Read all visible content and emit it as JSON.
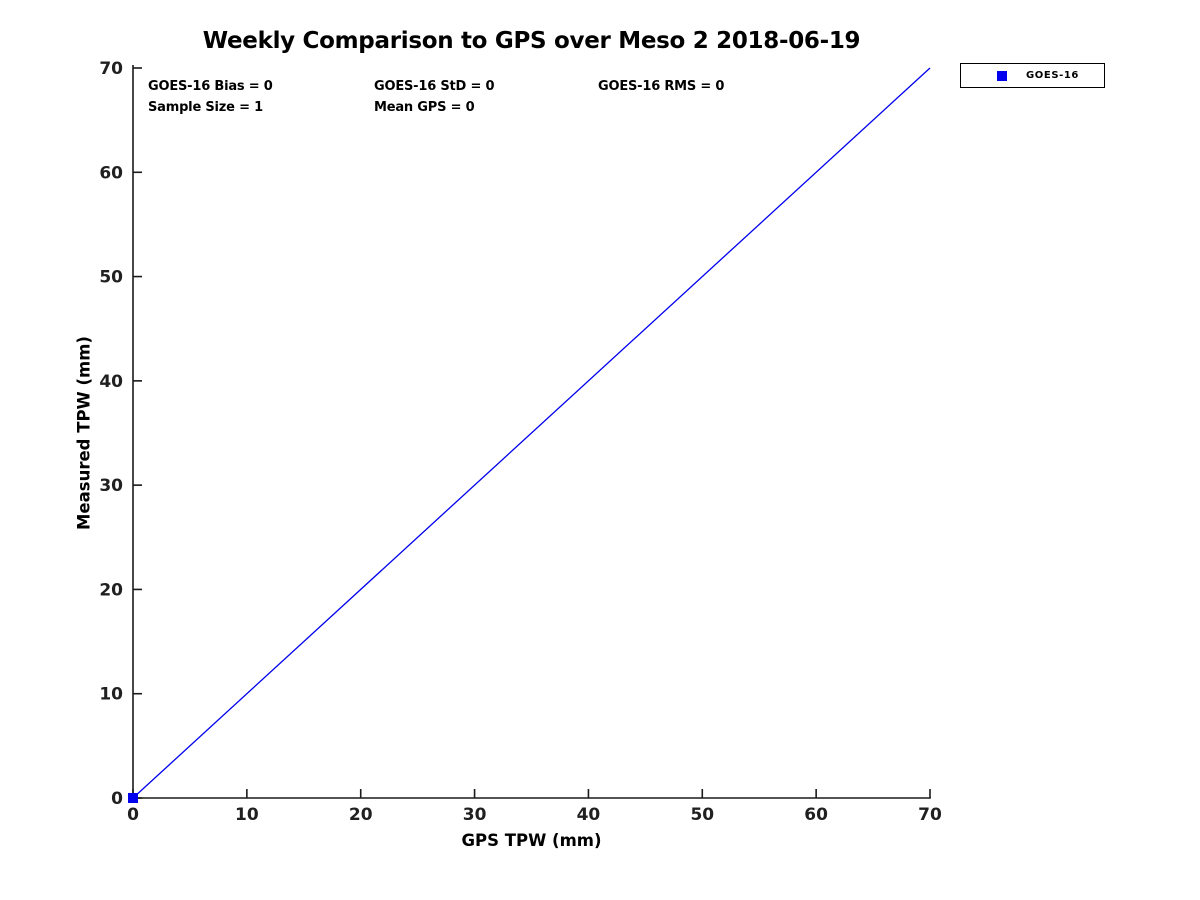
{
  "chart_data": {
    "type": "scatter",
    "title": "Weekly Comparison to GPS over Meso 2 2018-06-19",
    "xlabel": "GPS TPW (mm)",
    "ylabel": "Measured TPW (mm)",
    "xlim": [
      0,
      70
    ],
    "ylim": [
      0,
      70
    ],
    "xticks": [
      0,
      10,
      20,
      30,
      40,
      50,
      60,
      70
    ],
    "yticks": [
      0,
      10,
      20,
      30,
      40,
      50,
      60,
      70
    ],
    "grid": false,
    "axis_color": "#1a1a1a",
    "tick_label_color": "#202020",
    "accent_blue": "#0000ee",
    "legend": {
      "position": "outside-top-right",
      "entries": [
        {
          "label": "GOES-16",
          "marker": "square",
          "color": "#0000ee"
        }
      ]
    },
    "series": [
      {
        "name": "GOES-16",
        "type": "scatter",
        "marker": "square",
        "marker_size": 10,
        "color": "#0000ee",
        "points": [
          [
            0,
            0
          ]
        ]
      },
      {
        "name": "identity-line",
        "type": "line",
        "color": "#0000ee",
        "width": 1.3,
        "points": [
          [
            0,
            0
          ],
          [
            70,
            70
          ]
        ]
      }
    ],
    "annotations": [
      {
        "id": "bias",
        "text": "GOES-16 Bias = 0"
      },
      {
        "id": "std",
        "text": "GOES-16 StD = 0"
      },
      {
        "id": "rms",
        "text": "GOES-16 RMS = 0"
      },
      {
        "id": "sample_size",
        "text": "Sample Size = 1"
      },
      {
        "id": "mean_gps",
        "text": "Mean GPS = 0"
      }
    ]
  }
}
